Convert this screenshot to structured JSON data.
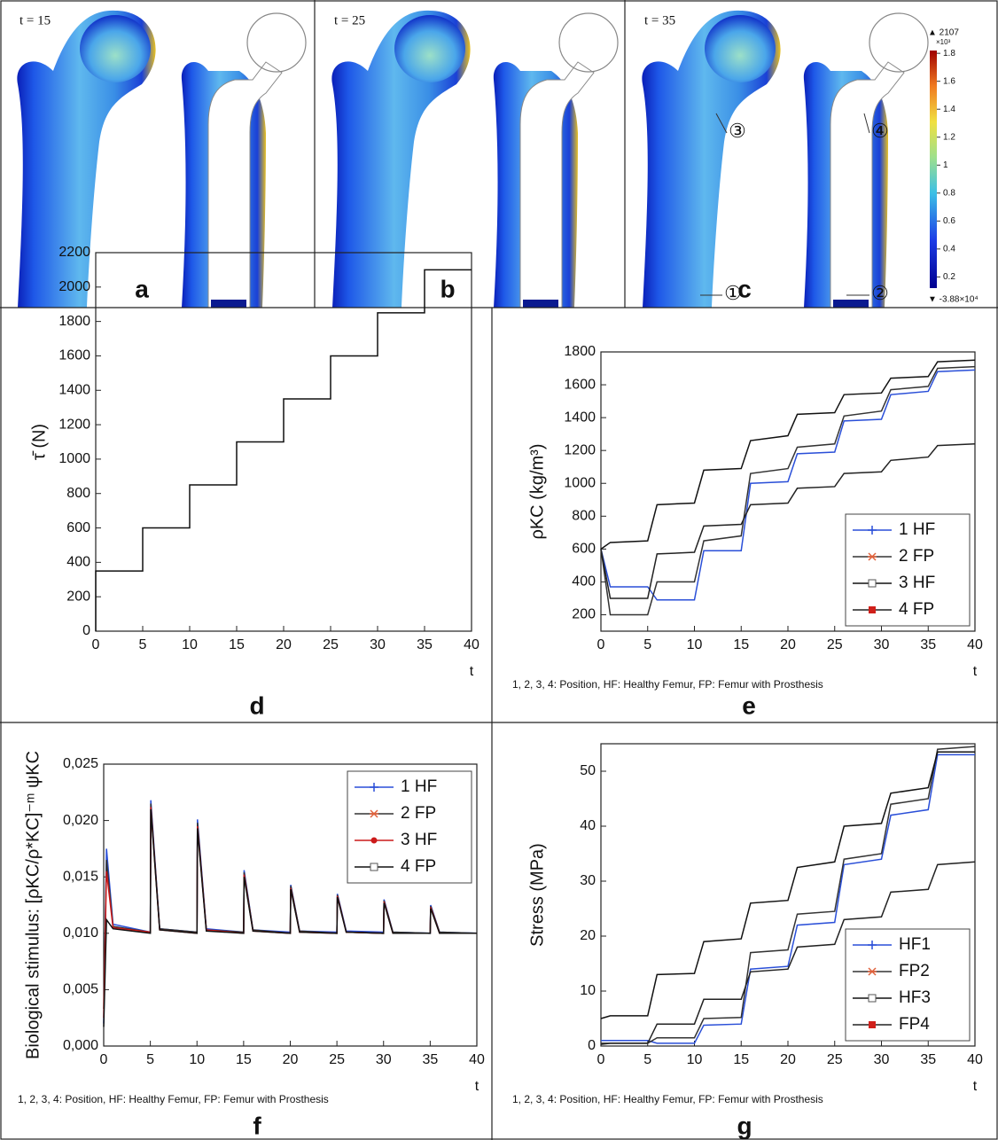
{
  "figure": {
    "panels": [
      {
        "time": "t = 15",
        "letter": "a"
      },
      {
        "time": "t = 25",
        "letter": "b"
      },
      {
        "time": "t = 35",
        "letter": "c"
      }
    ],
    "callouts": [
      "③",
      "④",
      "①",
      "②"
    ],
    "colorbar": {
      "max_label": "▲ 2107",
      "multiplier": "×10³",
      "min_label": "▼ -3.88×10⁴",
      "range": [
        0.12,
        1.82
      ],
      "ticks": [
        0.2,
        0.4,
        0.6,
        0.8,
        1,
        1.2,
        1.4,
        1.6,
        1.8
      ]
    }
  },
  "chart_data": [
    {
      "type": "line",
      "panel": "d",
      "ylabel": "τ̄ (N)",
      "xlabel": "t",
      "x": [
        0,
        0,
        5,
        5,
        10,
        10,
        15,
        15,
        20,
        20,
        25,
        25,
        30,
        30,
        35,
        35,
        40
      ],
      "values": [
        0,
        350,
        350,
        600,
        600,
        850,
        850,
        1100,
        1100,
        1350,
        1350,
        1600,
        1600,
        1850,
        1850,
        2100,
        2100
      ],
      "color": "#111111",
      "xlim": [
        0,
        40
      ],
      "xticks": [
        0,
        5,
        10,
        15,
        20,
        25,
        30,
        35,
        40
      ],
      "ylim": [
        0,
        2200
      ],
      "yticks": [
        0,
        200,
        400,
        600,
        800,
        1000,
        1200,
        1400,
        1600,
        1800,
        2000,
        2200
      ]
    },
    {
      "type": "line",
      "panel": "e",
      "ylabel": "ρKC (kg/m³)",
      "xlabel": "t",
      "note": "1, 2, 3, 4: Position, HF: Healthy Femur, FP: Femur with Prosthesis",
      "x": [
        0,
        1,
        5,
        6,
        10,
        11,
        15,
        16,
        20,
        21,
        25,
        26,
        30,
        31,
        35,
        36,
        40
      ],
      "series": [
        {
          "name": "1 HF",
          "color": "#2a4fd8",
          "marker": "plus",
          "marker_color": "#2a4fd8",
          "values": [
            600,
            370,
            370,
            290,
            290,
            590,
            590,
            1000,
            1010,
            1180,
            1190,
            1380,
            1390,
            1540,
            1560,
            1680,
            1690
          ]
        },
        {
          "name": "2 FP",
          "color": "#333333",
          "marker": "star",
          "marker_color": "#e0603a",
          "values": [
            600,
            200,
            200,
            400,
            400,
            650,
            680,
            1060,
            1090,
            1220,
            1240,
            1410,
            1440,
            1570,
            1590,
            1700,
            1710
          ]
        },
        {
          "name": "3 HF",
          "color": "#111111",
          "marker": "square-open",
          "marker_color": "#555555",
          "values": [
            600,
            640,
            650,
            870,
            880,
            1080,
            1090,
            1260,
            1290,
            1420,
            1430,
            1540,
            1550,
            1640,
            1650,
            1740,
            1750
          ]
        },
        {
          "name": "4 FP",
          "color": "#222222",
          "marker": "square",
          "marker_color": "#d0201a",
          "values": [
            600,
            300,
            300,
            570,
            580,
            740,
            750,
            870,
            880,
            970,
            980,
            1060,
            1070,
            1140,
            1160,
            1230,
            1240
          ]
        }
      ],
      "legend": "lower right",
      "xlim": [
        0,
        40
      ],
      "xticks": [
        0,
        5,
        10,
        15,
        20,
        25,
        30,
        35,
        40
      ],
      "ylim": [
        100,
        1800
      ],
      "yticks": [
        200,
        400,
        600,
        800,
        1000,
        1200,
        1400,
        1600,
        1800
      ]
    },
    {
      "type": "line",
      "panel": "f",
      "ylabel": "Biological stimulus: [ρKC/ρ*KC]⁻ᵐ ψKC",
      "xlabel": "t",
      "note": "1, 2, 3, 4: Position, HF: Healthy Femur, FP: Femur with Prosthesis",
      "x": [
        0,
        0.3,
        1,
        5,
        5.05,
        6,
        10,
        10.05,
        11,
        15,
        15.05,
        16,
        20,
        20.05,
        21,
        25,
        25.05,
        26,
        30,
        30.05,
        31,
        35,
        35.05,
        36,
        40
      ],
      "series": [
        {
          "name": "1 HF",
          "color": "#2a4fd8",
          "marker": "plus",
          "marker_color": "#2a4fd8",
          "values": [
            0.002,
            0.0175,
            0.0108,
            0.0101,
            0.0218,
            0.0104,
            0.0101,
            0.0201,
            0.0104,
            0.0101,
            0.0156,
            0.0103,
            0.0101,
            0.0143,
            0.0102,
            0.0101,
            0.0135,
            0.0102,
            0.0101,
            0.013,
            0.0101,
            0.01,
            0.0125,
            0.0101,
            0.01
          ]
        },
        {
          "name": "2 FP",
          "color": "#333333",
          "marker": "star",
          "marker_color": "#e0603a",
          "values": [
            0.0033,
            0.0165,
            0.0106,
            0.0101,
            0.0215,
            0.0104,
            0.0101,
            0.0198,
            0.0103,
            0.0101,
            0.0154,
            0.0103,
            0.01,
            0.0142,
            0.0102,
            0.01,
            0.0134,
            0.0101,
            0.01,
            0.0129,
            0.0101,
            0.01,
            0.0124,
            0.0101,
            0.01
          ]
        },
        {
          "name": "3 HF",
          "color": "#cc1a1a",
          "marker": "dot",
          "marker_color": "#cc1a1a",
          "values": [
            0.0025,
            0.0155,
            0.0105,
            0.0101,
            0.0212,
            0.0103,
            0.01,
            0.0195,
            0.0103,
            0.01,
            0.0152,
            0.0102,
            0.01,
            0.014,
            0.0101,
            0.01,
            0.0133,
            0.0101,
            0.01,
            0.0128,
            0.01,
            0.01,
            0.0123,
            0.01,
            0.01
          ]
        },
        {
          "name": "4 FP",
          "color": "#111111",
          "marker": "square-open",
          "marker_color": "#555555",
          "values": [
            0.0017,
            0.0112,
            0.0104,
            0.01,
            0.021,
            0.0103,
            0.01,
            0.0193,
            0.0102,
            0.01,
            0.015,
            0.0102,
            0.01,
            0.0139,
            0.0101,
            0.01,
            0.0132,
            0.0101,
            0.01,
            0.0127,
            0.01,
            0.01,
            0.0122,
            0.01,
            0.01
          ]
        }
      ],
      "legend": "upper right",
      "xlim": [
        0,
        40
      ],
      "xticks": [
        0,
        5,
        10,
        15,
        20,
        25,
        30,
        35,
        40
      ],
      "ylim": [
        0,
        0.025
      ],
      "yticks": [
        {
          "value": 0,
          "label": "0,000"
        },
        {
          "value": 0.005,
          "label": "0,005"
        },
        {
          "value": 0.01,
          "label": "0,010"
        },
        {
          "value": 0.015,
          "label": "0,015"
        },
        {
          "value": 0.02,
          "label": "0,020"
        },
        {
          "value": 0.025,
          "label": "0,025"
        }
      ]
    },
    {
      "type": "line",
      "panel": "g",
      "ylabel": "Stress (MPa)",
      "xlabel": "t",
      "note": "1, 2, 3, 4: Position, HF: Healthy Femur, FP: Femur with Prosthesis",
      "x": [
        0,
        1,
        5,
        6,
        10,
        11,
        15,
        16,
        20,
        21,
        25,
        26,
        30,
        31,
        35,
        36,
        40
      ],
      "series": [
        {
          "name": "HF1",
          "color": "#2a4fd8",
          "marker": "plus",
          "marker_color": "#2a4fd8",
          "values": [
            1,
            1,
            1,
            0.5,
            0.5,
            3.8,
            4,
            14,
            14.5,
            22,
            22.5,
            33,
            34,
            42,
            43,
            53,
            53
          ]
        },
        {
          "name": "FP2",
          "color": "#333333",
          "marker": "star",
          "marker_color": "#e0603a",
          "values": [
            0.5,
            0.5,
            0.5,
            1.5,
            1.5,
            5,
            5.2,
            17,
            17.5,
            24,
            24.5,
            34,
            35,
            44,
            45,
            54,
            54.5
          ]
        },
        {
          "name": "HF3",
          "color": "#111111",
          "marker": "square-open",
          "marker_color": "#555555",
          "values": [
            5,
            5.5,
            5.5,
            13,
            13.2,
            19,
            19.5,
            26,
            26.5,
            32.5,
            33.5,
            40,
            40.5,
            46,
            47,
            53.5,
            53.5
          ]
        },
        {
          "name": "FP4",
          "color": "#222222",
          "marker": "square",
          "marker_color": "#d0201a",
          "values": [
            0.3,
            0.5,
            0.5,
            4,
            4,
            8.5,
            8.5,
            13.5,
            14,
            18,
            18.5,
            23,
            23.5,
            28,
            28.5,
            33,
            33.5
          ]
        }
      ],
      "legend": "lower right",
      "xlim": [
        0,
        40
      ],
      "xticks": [
        0,
        5,
        10,
        15,
        20,
        25,
        30,
        35,
        40
      ],
      "ylim": [
        0,
        55
      ],
      "yticks": [
        0,
        10,
        20,
        30,
        40,
        50
      ]
    }
  ]
}
